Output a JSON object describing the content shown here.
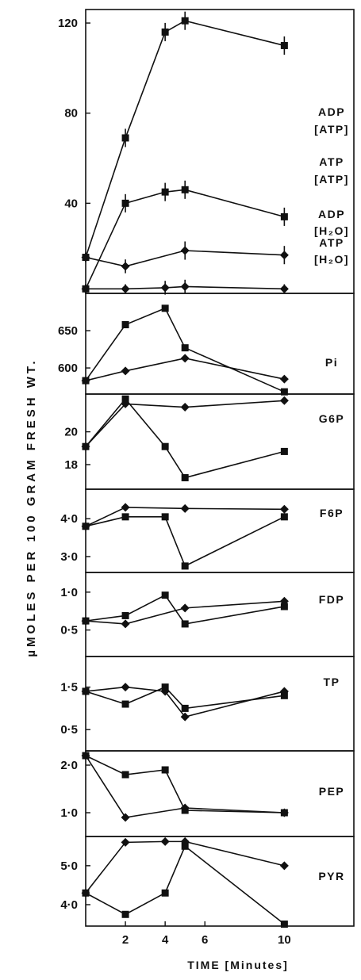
{
  "chart_data": {
    "type": "line",
    "y_axis_title": "µMOLES PER 100 GRAM FRESH WT.",
    "x_axis": {
      "title": "TIME [Minutes]",
      "ticks": [
        2,
        4,
        6,
        10
      ],
      "range": [
        0,
        13.5
      ]
    },
    "panels": [
      {
        "id": "nucleotides",
        "ylim": [
          0,
          126
        ],
        "yticks": [
          40,
          80,
          120
        ],
        "ytick_labels": [
          "40",
          "80",
          "120"
        ],
        "series": [
          {
            "name": "ADP [ATP]",
            "label_lines": [
              "ADP",
              "[ATP]"
            ],
            "marker": "square",
            "x": [
              0,
              2,
              4,
              5,
              10
            ],
            "y": [
              16,
              69,
              116,
              121,
              110
            ],
            "err": [
              1,
              3,
              3,
              3,
              3
            ]
          },
          {
            "name": "ATP [ATP]",
            "label_lines": [
              "ATP",
              "[ATP]"
            ],
            "marker": "square",
            "x": [
              0,
              2,
              4,
              5,
              10
            ],
            "y": [
              2,
              40,
              45,
              46,
              34
            ],
            "err": [
              1,
              3,
              3,
              3,
              3
            ]
          },
          {
            "name": "ADP [H2O]",
            "label_lines": [
              "ADP",
              "[H₂O]"
            ],
            "marker": "diamond",
            "x": [
              0,
              2,
              5,
              10
            ],
            "y": [
              16,
              12,
              19,
              17
            ],
            "err": [
              1,
              2,
              3,
              3
            ]
          },
          {
            "name": "ATP [H2O]",
            "label_lines": [
              "ATP",
              "[H₂O]"
            ],
            "marker": "diamond",
            "x": [
              0,
              2,
              4,
              5,
              10
            ],
            "y": [
              2,
              2,
              2.5,
              3,
              2
            ],
            "err": [
              1,
              1,
              2,
              2,
              1
            ]
          }
        ]
      },
      {
        "id": "pi",
        "ylim": [
          565,
          700
        ],
        "yticks": [
          600,
          650
        ],
        "ytick_labels": [
          "600",
          "650"
        ],
        "series": [
          {
            "name": "Pi",
            "label_lines": [
              "Pi"
            ],
            "marker": "square",
            "x": [
              0,
              2,
              4,
              5,
              10
            ],
            "y": [
              583,
              658,
              680,
              627,
              568
            ]
          },
          {
            "name": "Pi",
            "label_lines": [],
            "marker": "diamond",
            "x": [
              0,
              2,
              5,
              10
            ],
            "y": [
              583,
              596,
              613,
              585
            ]
          }
        ]
      },
      {
        "id": "g6p",
        "ylim": [
          16.5,
          22.3
        ],
        "yticks": [
          18,
          20
        ],
        "ytick_labels": [
          "18",
          "20"
        ],
        "series": [
          {
            "name": "G6P",
            "label_lines": [
              "G6P"
            ],
            "marker": "square",
            "x": [
              0,
              2,
              4,
              5,
              10
            ],
            "y": [
              19.1,
              22.0,
              19.1,
              17.2,
              18.8
            ]
          },
          {
            "name": "G6P",
            "label_lines": [],
            "marker": "diamond",
            "x": [
              0,
              2,
              5,
              10
            ],
            "y": [
              19.1,
              21.7,
              21.5,
              21.9
            ]
          }
        ]
      },
      {
        "id": "f6p",
        "ylim": [
          2.58,
          4.78
        ],
        "yticks": [
          3.0,
          4.0
        ],
        "ytick_labels": [
          "3·0",
          "4·0"
        ],
        "series": [
          {
            "name": "F6P",
            "label_lines": [
              "F6P"
            ],
            "marker": "square",
            "x": [
              0,
              2,
              4,
              5,
              10
            ],
            "y": [
              3.8,
              4.05,
              4.05,
              2.75,
              4.05
            ]
          },
          {
            "name": "F6P",
            "label_lines": [],
            "marker": "diamond",
            "x": [
              0,
              2,
              5,
              10
            ],
            "y": [
              3.8,
              4.3,
              4.27,
              4.25
            ]
          }
        ]
      },
      {
        "id": "fdp",
        "ylim": [
          0.15,
          1.26
        ],
        "yticks": [
          0.5,
          1.0
        ],
        "ytick_labels": [
          "0·5",
          "1·0"
        ],
        "series": [
          {
            "name": "FDP",
            "label_lines": [
              "FDP"
            ],
            "marker": "square",
            "x": [
              0,
              2,
              4,
              5,
              10
            ],
            "y": [
              0.62,
              0.69,
              0.96,
              0.58,
              0.81
            ]
          },
          {
            "name": "FDP",
            "label_lines": [],
            "marker": "diamond",
            "x": [
              0,
              2,
              5,
              10
            ],
            "y": [
              0.62,
              0.58,
              0.79,
              0.88
            ]
          }
        ]
      },
      {
        "id": "tp",
        "ylim": [
          0.0,
          2.22
        ],
        "yticks": [
          0.5,
          1.5
        ],
        "ytick_labels": [
          "0·5",
          "1·5"
        ],
        "series": [
          {
            "name": "TP",
            "label_lines": [
              "TP"
            ],
            "marker": "square",
            "x": [
              0,
              2,
              4,
              5,
              10
            ],
            "y": [
              1.4,
              1.1,
              1.5,
              1.0,
              1.3
            ]
          },
          {
            "name": "TP",
            "label_lines": [],
            "marker": "diamond",
            "x": [
              0,
              2,
              4,
              5,
              10
            ],
            "y": [
              1.4,
              1.5,
              1.4,
              0.8,
              1.4
            ]
          }
        ]
      },
      {
        "id": "pep",
        "ylim": [
          0.5,
          2.3
        ],
        "yticks": [
          1.0,
          2.0
        ],
        "ytick_labels": [
          "1·0",
          "2·0"
        ],
        "series": [
          {
            "name": "PEP",
            "label_lines": [
              "PEP"
            ],
            "marker": "square",
            "x": [
              0,
              2,
              4,
              5,
              10
            ],
            "y": [
              2.2,
              1.8,
              1.9,
              1.05,
              1.0
            ]
          },
          {
            "name": "PEP",
            "label_lines": [],
            "marker": "diamond",
            "x": [
              0,
              2,
              5,
              10
            ],
            "y": [
              2.2,
              0.9,
              1.1,
              1.0
            ]
          }
        ]
      },
      {
        "id": "pyr",
        "ylim": [
          3.45,
          5.75
        ],
        "yticks": [
          4.0,
          5.0
        ],
        "ytick_labels": [
          "4·0",
          "5·0"
        ],
        "series": [
          {
            "name": "PYR",
            "label_lines": [
              "PYR"
            ],
            "marker": "square",
            "x": [
              0,
              2,
              4,
              5,
              10
            ],
            "y": [
              4.3,
              3.75,
              4.3,
              5.5,
              3.5
            ]
          },
          {
            "name": "PYR",
            "label_lines": [],
            "marker": "diamond",
            "x": [
              0,
              2,
              4,
              5,
              10
            ],
            "y": [
              4.3,
              5.6,
              5.62,
              5.62,
              5.0
            ]
          }
        ]
      }
    ]
  }
}
